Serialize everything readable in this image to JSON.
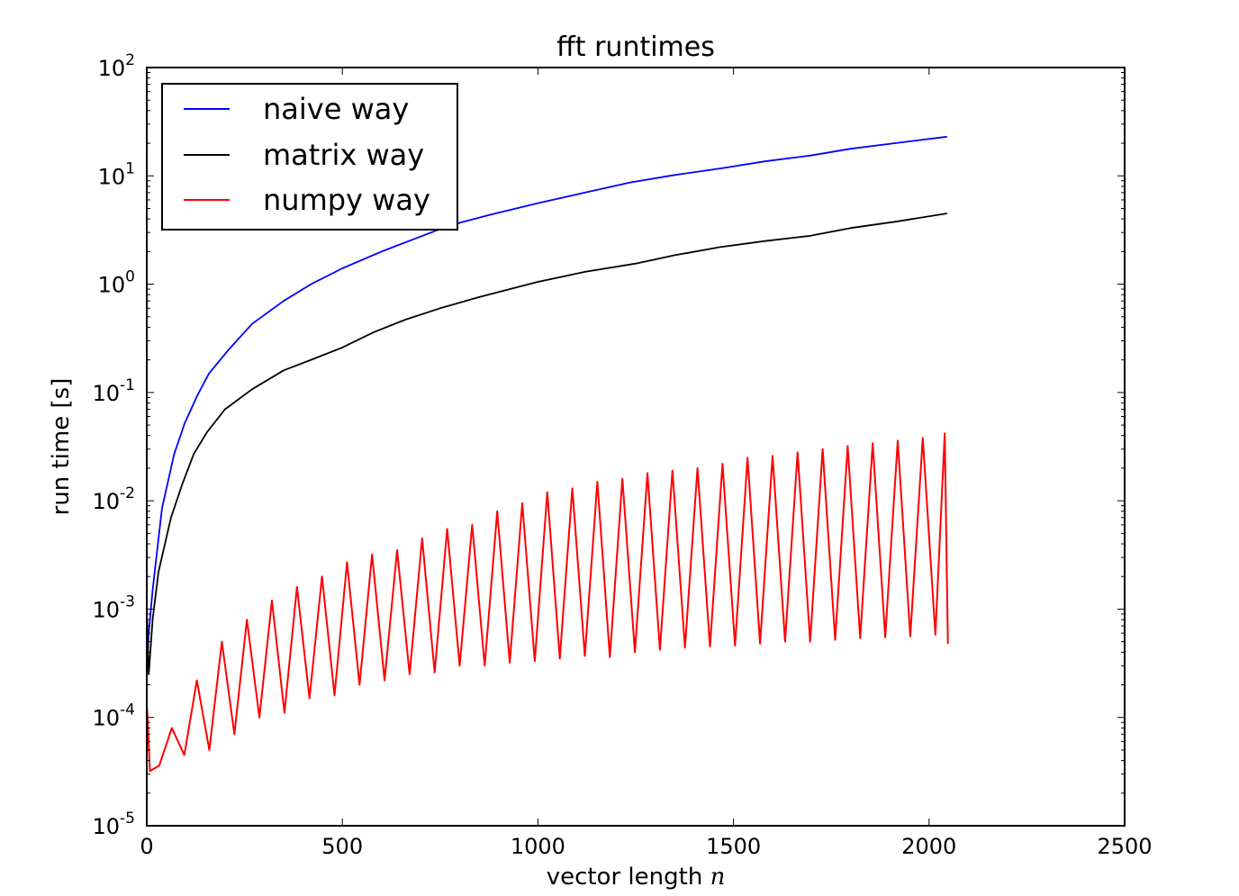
{
  "chart_data": {
    "type": "line",
    "title": "fft runtimes",
    "xlabel": "vector length",
    "xlabel_var": "n",
    "ylabel": "run time [s]",
    "xlim": [
      0,
      2500
    ],
    "ylim": [
      1e-05,
      100
    ],
    "yscale": "log",
    "grid": false,
    "legend_position": "top-left",
    "x_ticks": [
      "0",
      "500",
      "1000",
      "1500",
      "2000",
      "2500"
    ],
    "x_tick_values": [
      0,
      500,
      1000,
      1500,
      2000,
      2500
    ],
    "y_ticks": [
      {
        "base": "10",
        "exp": "-5",
        "value": 1e-05
      },
      {
        "base": "10",
        "exp": "-4",
        "value": 0.0001
      },
      {
        "base": "10",
        "exp": "-3",
        "value": 0.001
      },
      {
        "base": "10",
        "exp": "-2",
        "value": 0.01
      },
      {
        "base": "10",
        "exp": "-1",
        "value": 0.1
      },
      {
        "base": "10",
        "exp": "0",
        "value": 1
      },
      {
        "base": "10",
        "exp": "1",
        "value": 10
      },
      {
        "base": "10",
        "exp": "2",
        "value": 100
      }
    ],
    "series": [
      {
        "name": "naive way",
        "color": "#0000ff",
        "x": [
          1,
          5,
          15,
          39,
          70,
          97,
          130,
          159,
          210,
          269,
          350,
          420,
          500,
          600,
          700,
          776,
          880,
          1000,
          1120,
          1236,
          1350,
          1466,
          1580,
          1697,
          1800,
          1920,
          2046
        ],
        "y": [
          0.0003,
          0.0006,
          0.0015,
          0.0085,
          0.027,
          0.052,
          0.095,
          0.15,
          0.25,
          0.43,
          0.7,
          1.0,
          1.4,
          2.0,
          2.75,
          3.5,
          4.4,
          5.6,
          7.0,
          8.7,
          10.2,
          11.7,
          13.6,
          15.4,
          17.8,
          20.2,
          23
        ]
      },
      {
        "name": "matrix way",
        "color": "#000000",
        "x": [
          1,
          5,
          15,
          30,
          62,
          90,
          120,
          154,
          200,
          269,
          350,
          420,
          500,
          580,
          661,
          750,
          850,
          1000,
          1120,
          1250,
          1350,
          1466,
          1580,
          1697,
          1800,
          1920,
          2046
        ],
        "y": [
          0.0008,
          0.00025,
          0.0008,
          0.0022,
          0.007,
          0.014,
          0.027,
          0.043,
          0.07,
          0.107,
          0.16,
          0.2,
          0.26,
          0.36,
          0.47,
          0.6,
          0.76,
          1.05,
          1.3,
          1.55,
          1.85,
          2.2,
          2.5,
          2.8,
          3.3,
          3.8,
          4.5
        ]
      },
      {
        "name": "numpy way",
        "color": "#ff0000",
        "x": [
          1,
          8,
          32,
          64,
          96,
          128,
          160,
          192,
          224,
          256,
          288,
          320,
          352,
          384,
          416,
          448,
          480,
          512,
          544,
          576,
          608,
          640,
          672,
          704,
          736,
          768,
          800,
          832,
          864,
          896,
          928,
          960,
          992,
          1024,
          1056,
          1088,
          1120,
          1152,
          1184,
          1216,
          1248,
          1280,
          1312,
          1344,
          1376,
          1408,
          1440,
          1472,
          1504,
          1536,
          1568,
          1600,
          1632,
          1664,
          1696,
          1728,
          1760,
          1792,
          1824,
          1856,
          1888,
          1920,
          1952,
          1984,
          2016,
          2040,
          2048
        ],
        "y": [
          0.00012,
          3.2e-05,
          3.6e-05,
          8e-05,
          4.5e-05,
          0.00022,
          5e-05,
          0.0005,
          7e-05,
          0.0008,
          0.0001,
          0.0012,
          0.00011,
          0.0016,
          0.00015,
          0.002,
          0.00016,
          0.0027,
          0.0002,
          0.0032,
          0.00022,
          0.0035,
          0.00025,
          0.0045,
          0.00026,
          0.0055,
          0.0003,
          0.006,
          0.0003,
          0.008,
          0.00032,
          0.0095,
          0.00033,
          0.012,
          0.00035,
          0.013,
          0.00037,
          0.015,
          0.00036,
          0.016,
          0.0004,
          0.018,
          0.00042,
          0.019,
          0.00044,
          0.02,
          0.00045,
          0.022,
          0.00046,
          0.025,
          0.00048,
          0.026,
          0.0005,
          0.028,
          0.0005,
          0.03,
          0.00052,
          0.032,
          0.00054,
          0.034,
          0.00055,
          0.036,
          0.00056,
          0.038,
          0.00058,
          0.042,
          0.00048
        ]
      }
    ]
  }
}
